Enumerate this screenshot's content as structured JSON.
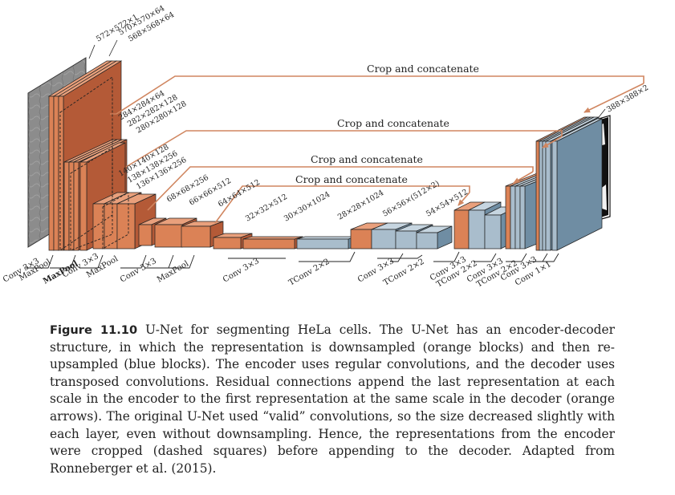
{
  "colors": {
    "orange_front": "#db8256",
    "orange_side": "#b45a37",
    "orange_top": "#e9a07c",
    "blue_front": "#a9bdcc",
    "blue_side": "#6f8da3",
    "blue_top": "#c6d5e0",
    "arrow": "#d08660",
    "image_gray": "#8c8c8c"
  },
  "labels": {
    "crop": [
      "Crop and concatenate",
      "Crop and concatenate",
      "Crop and concatenate",
      "Crop and concatenate"
    ],
    "dims": [
      "572×572×1",
      "570×570×64",
      "568×568×64",
      "284×284×64",
      "282×282×128",
      "280×280×128",
      "140×140×128",
      "138×138×256",
      "136×136×256",
      "68×68×256",
      "66×66×512",
      "64×64×512",
      "32×32×512",
      "30×30×1024",
      "28×28×1024",
      "56×56×(512×2)",
      "54×54×512",
      "388×388×2"
    ],
    "ops": [
      "Conv 3×3",
      "MaxPool",
      "MaxPool",
      "Conv 3×3",
      "MaxPool",
      "Conv 3×3",
      "MaxPool",
      "Conv 3×3",
      "TConv 2×2",
      "Conv 3×3",
      "TConv 2×2",
      "Conv 3×3",
      "TConv 2×2",
      "Conv 3×3",
      "TConv 2×2",
      "Conv 3×3",
      "Conv 1×1"
    ]
  },
  "caption": {
    "label": "Figure 11.10",
    "text": " U-Net for segmenting HeLa cells. The U-Net has an encoder-decoder structure, in which the representation is downsampled (orange blocks) and then re-upsampled (blue blocks). The encoder uses regular convolutions, and the decoder uses transposed convolutions. Residual connections append the last representation at each scale in the encoder to the first representation at the same scale in the decoder (orange arrows). The original U-Net used “valid” convolutions, so the size decreased slightly with each layer, even without downsampling. Hence, the representations from the encoder were cropped (dashed squares) before appending to the decoder. Adapted from Ronneberger et al. (2015)."
  }
}
